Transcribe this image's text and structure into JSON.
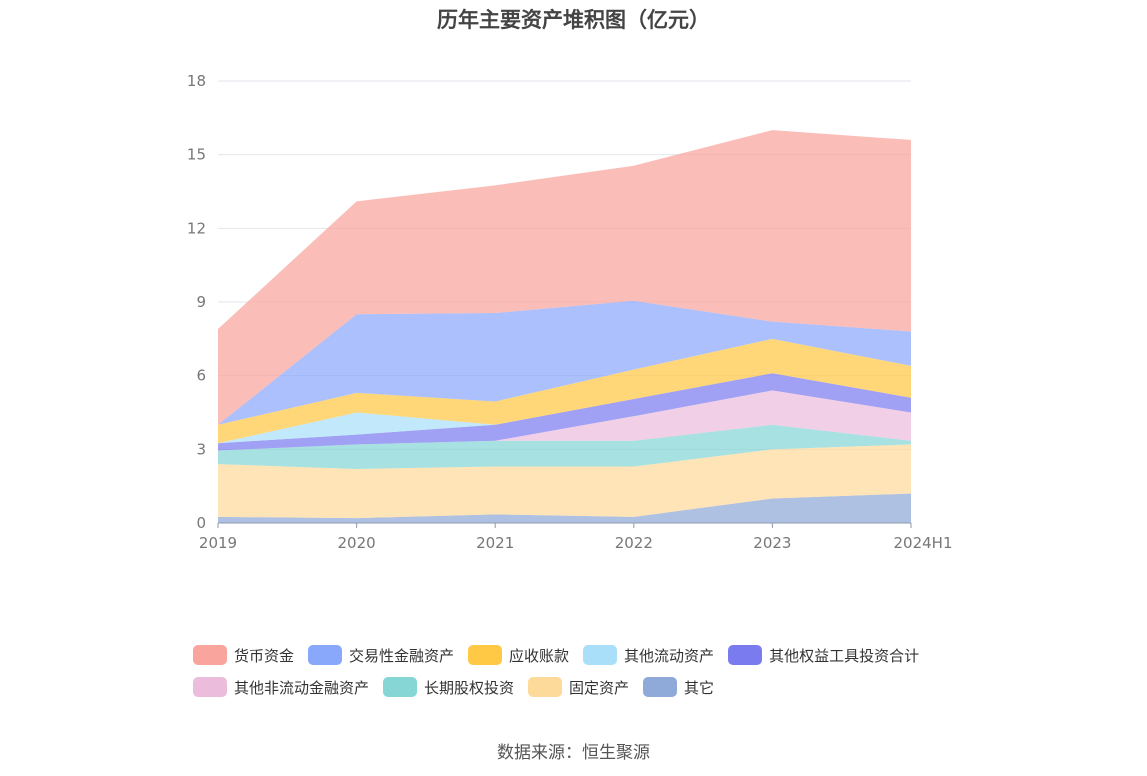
{
  "title": "历年主要资产堆积图（亿元）",
  "source": "数据来源：恒生聚源",
  "chart_data": {
    "type": "area",
    "stacked": true,
    "categories": [
      "2019",
      "2020",
      "2021",
      "2022",
      "2023",
      "2024H1"
    ],
    "ylim": [
      0,
      18
    ],
    "yticks": [
      0,
      3,
      6,
      9,
      12,
      15,
      18
    ],
    "grid": true,
    "legend_position": "bottom",
    "series": [
      {
        "name": "其它",
        "color": "#8fa9d8",
        "values": [
          0.25,
          0.2,
          0.35,
          0.25,
          1.0,
          1.2
        ]
      },
      {
        "name": "固定资产",
        "color": "#fdd99a",
        "values": [
          2.15,
          2.0,
          1.95,
          2.05,
          2.0,
          2.0
        ]
      },
      {
        "name": "长期股权投资",
        "color": "#86d6d6",
        "values": [
          0.55,
          1.0,
          1.05,
          1.05,
          1.0,
          0.15
        ]
      },
      {
        "name": "其他非流动金融资产",
        "color": "#ebbcdc",
        "values": [
          0,
          0,
          0,
          1.0,
          1.4,
          1.15
        ]
      },
      {
        "name": "其他权益工具投资合计",
        "color": "#7b7bf0",
        "values": [
          0.3,
          0.4,
          0.65,
          0.7,
          0.7,
          0.6
        ]
      },
      {
        "name": "其他流动资产",
        "color": "#a9dff9",
        "values": [
          0.0,
          0.9,
          0.0,
          0.0,
          0.0,
          0.0
        ]
      },
      {
        "name": "应收账款",
        "color": "#ffc845",
        "values": [
          0.75,
          0.8,
          0.95,
          1.2,
          1.4,
          1.3
        ]
      },
      {
        "name": "交易性金融资产",
        "color": "#8aa8fb",
        "values": [
          0.0,
          3.2,
          3.6,
          2.8,
          0.7,
          1.4
        ]
      },
      {
        "name": "货币资金",
        "color": "#f9a49d",
        "values": [
          3.9,
          4.6,
          5.2,
          5.5,
          7.8,
          7.8
        ]
      }
    ]
  },
  "legend": [
    [
      {
        "label": "货币资金",
        "color": "#f9a49d"
      },
      {
        "label": "交易性金融资产",
        "color": "#8aa8fb"
      },
      {
        "label": "应收账款",
        "color": "#ffc845"
      },
      {
        "label": "其他流动资产",
        "color": "#a9dff9"
      },
      {
        "label": "其他权益工具投资合计",
        "color": "#7b7bf0"
      }
    ],
    [
      {
        "label": "其他非流动金融资产",
        "color": "#ebbcdc"
      },
      {
        "label": "长期股权投资",
        "color": "#86d6d6"
      },
      {
        "label": "固定资产",
        "color": "#fdd99a"
      },
      {
        "label": "其它",
        "color": "#8fa9d8"
      }
    ]
  ]
}
